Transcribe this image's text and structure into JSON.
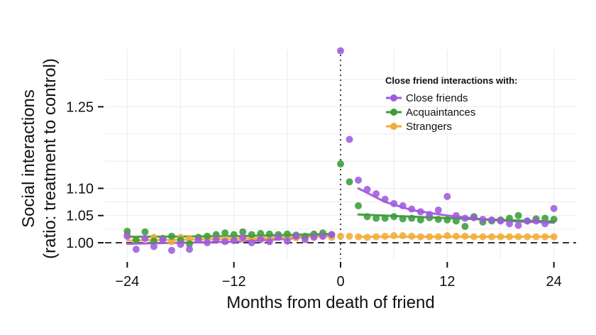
{
  "chart_data": {
    "type": "scatter",
    "xlabel": "Months from death of friend",
    "ylabel_lines": [
      "Social interactions",
      "(ratio: treatment to control)"
    ],
    "xticks": [
      -24,
      -12,
      0,
      12,
      24
    ],
    "xtick_labels": [
      "−24",
      "−12",
      "0",
      "12",
      "24"
    ],
    "yticks": [
      1.0,
      1.05,
      1.1,
      1.25
    ],
    "ytick_labels": [
      "1.00",
      "1.05",
      "1.10",
      "1.25"
    ],
    "xlim": [
      -26.5,
      26.5
    ],
    "ylim": [
      0.97,
      1.355
    ],
    "grid": true,
    "reference_lines": {
      "horizontal_dashed_y": 1.0,
      "vertical_dotted_x": 0
    },
    "legend": {
      "title": "Close friend interactions with:",
      "position": "top-right",
      "entries": [
        "Close friends",
        "Acquaintances",
        "Strangers"
      ]
    },
    "x": [
      -24,
      -23,
      -22,
      -21,
      -20,
      -19,
      -18,
      -17,
      -16,
      -15,
      -14,
      -13,
      -12,
      -11,
      -10,
      -9,
      -8,
      -7,
      -6,
      -5,
      -4,
      -3,
      -2,
      -1,
      0,
      1,
      2,
      3,
      4,
      5,
      6,
      7,
      8,
      9,
      10,
      11,
      12,
      13,
      14,
      15,
      16,
      17,
      18,
      19,
      20,
      21,
      22,
      23,
      24
    ],
    "series": [
      {
        "name": "Close friends",
        "color": "#a05ae0",
        "values": [
          1.012,
          0.988,
          1.008,
          0.993,
          1.006,
          0.986,
          0.997,
          0.988,
          1.005,
          1.0,
          1.006,
          1.002,
          1.004,
          1.01,
          1.0,
          1.006,
          1.002,
          1.01,
          1.003,
          1.012,
          1.006,
          1.01,
          1.012,
          1.015,
          1.355,
          1.19,
          1.115,
          1.098,
          1.09,
          1.08,
          1.072,
          1.068,
          1.062,
          1.057,
          1.052,
          1.06,
          1.085,
          1.05,
          1.045,
          1.046,
          1.043,
          1.042,
          1.04,
          1.035,
          1.032,
          1.04,
          1.04,
          1.035,
          1.063
        ],
        "fit_pre": [
          [
            -24,
            0.998
          ],
          [
            -18,
            1.0
          ],
          [
            -12,
            1.002
          ],
          [
            -6,
            1.007
          ],
          [
            -1,
            1.016
          ]
        ],
        "fit_post": [
          [
            2,
            1.1
          ],
          [
            5,
            1.075
          ],
          [
            8,
            1.06
          ],
          [
            12,
            1.05
          ],
          [
            16,
            1.043
          ],
          [
            20,
            1.039
          ],
          [
            24,
            1.037
          ]
        ]
      },
      {
        "name": "Acquaintances",
        "color": "#3a9d3a",
        "values": [
          1.021,
          1.005,
          1.02,
          1.003,
          1.008,
          1.012,
          1.005,
          0.998,
          1.01,
          1.012,
          1.015,
          1.018,
          1.015,
          1.02,
          1.015,
          1.017,
          1.016,
          1.015,
          1.016,
          1.014,
          1.012,
          1.016,
          1.018,
          1.015,
          1.145,
          1.112,
          1.068,
          1.048,
          1.045,
          1.045,
          1.048,
          1.044,
          1.045,
          1.042,
          1.046,
          1.043,
          1.042,
          1.04,
          1.03,
          1.048,
          1.038,
          1.04,
          1.042,
          1.045,
          1.05,
          1.04,
          1.044,
          1.045,
          1.043
        ],
        "fit_pre": [
          [
            -24,
            1.011
          ],
          [
            -12,
            1.012
          ],
          [
            -1,
            1.016
          ]
        ],
        "fit_post": [
          [
            2,
            1.052
          ],
          [
            8,
            1.048
          ],
          [
            14,
            1.044
          ],
          [
            20,
            1.041
          ],
          [
            24,
            1.039
          ]
        ]
      },
      {
        "name": "Strangers",
        "color": "#f0ad3a",
        "values": [
          1.015,
          1.005,
          1.008,
          1.01,
          1.008,
          1.002,
          1.01,
          1.008,
          1.01,
          1.008,
          1.01,
          1.007,
          1.008,
          1.008,
          1.008,
          1.009,
          1.007,
          1.011,
          1.009,
          1.009,
          1.01,
          1.011,
          1.012,
          1.01,
          1.012,
          1.012,
          1.011,
          1.01,
          1.011,
          1.012,
          1.013,
          1.013,
          1.012,
          1.011,
          1.011,
          1.011,
          1.013,
          1.012,
          1.012,
          1.011,
          1.011,
          1.011,
          1.011,
          1.011,
          1.011,
          1.011,
          1.011,
          1.011,
          1.011
        ],
        "fit_pre": [
          [
            -24,
            1.004
          ],
          [
            -12,
            1.007
          ],
          [
            -1,
            1.012
          ]
        ],
        "fit_post": [
          [
            2,
            1.011
          ],
          [
            12,
            1.011
          ],
          [
            24,
            1.011
          ]
        ]
      }
    ]
  }
}
